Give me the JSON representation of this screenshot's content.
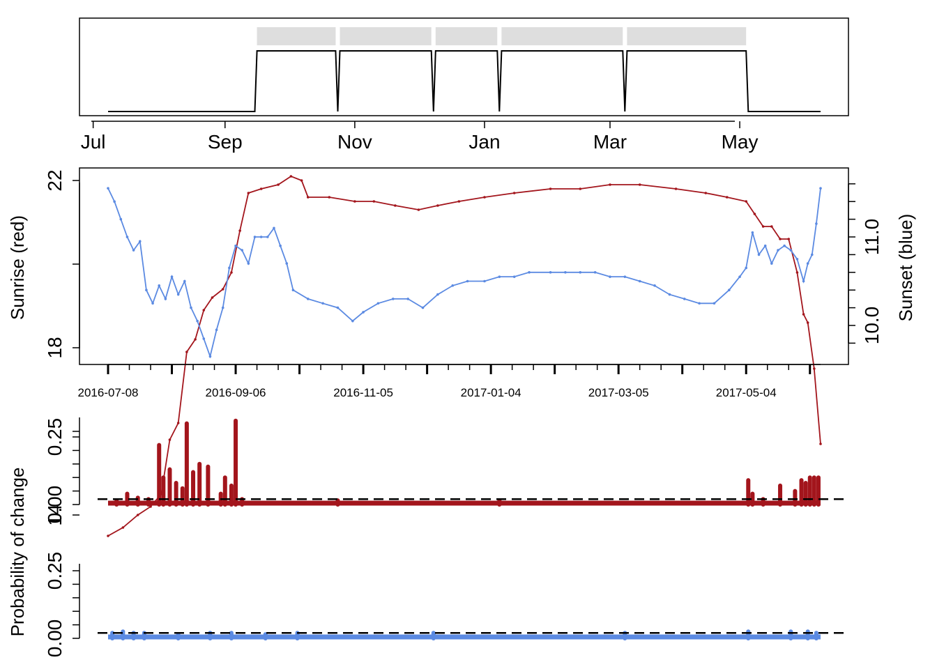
{
  "colors": {
    "red": "#a3151c",
    "blue": "#5b8ae2",
    "segment_bar": "#dedede",
    "axis": "#000000"
  },
  "chart_data": [
    {
      "type": "step",
      "panel": "segments",
      "x_tick_labels": [
        "Jul",
        "Sep",
        "Nov",
        "Jan",
        "Mar",
        "May"
      ],
      "x_tick_dates": [
        "2016-07-01",
        "2016-09-01",
        "2016-11-01",
        "2017-01-01",
        "2017-03-01",
        "2017-05-01"
      ],
      "state": [
        {
          "date": "2016-07-08",
          "value": 0
        },
        {
          "date": "2016-09-15",
          "value": 0
        },
        {
          "date": "2016-09-16",
          "value": 1
        },
        {
          "date": "2016-10-23",
          "value": 1
        },
        {
          "date": "2016-10-24",
          "value": 0
        },
        {
          "date": "2016-10-25",
          "value": 1
        },
        {
          "date": "2016-12-07",
          "value": 1
        },
        {
          "date": "2016-12-08",
          "value": 0
        },
        {
          "date": "2016-12-09",
          "value": 1
        },
        {
          "date": "2017-01-07",
          "value": 1
        },
        {
          "date": "2017-01-08",
          "value": 0
        },
        {
          "date": "2017-01-09",
          "value": 1
        },
        {
          "date": "2017-03-07",
          "value": 1
        },
        {
          "date": "2017-03-08",
          "value": 0
        },
        {
          "date": "2017-03-09",
          "value": 1
        },
        {
          "date": "2017-05-04",
          "value": 1
        },
        {
          "date": "2017-05-05",
          "value": 0
        },
        {
          "date": "2017-06-08",
          "value": 0
        }
      ],
      "segments": [
        {
          "start": "2016-09-16",
          "end": "2016-10-23"
        },
        {
          "start": "2016-10-25",
          "end": "2016-12-07"
        },
        {
          "start": "2016-12-09",
          "end": "2017-01-07"
        },
        {
          "start": "2017-01-09",
          "end": "2017-03-07"
        },
        {
          "start": "2017-03-09",
          "end": "2017-05-04"
        }
      ]
    },
    {
      "type": "line",
      "panel": "sunrise-sunset",
      "xlabel": "",
      "ylabel_left": "Sunrise (red)",
      "ylabel_right": "Sunset (blue)",
      "ylim_left": [
        13,
        22.4
      ],
      "ylim_right": [
        9.6,
        11.8
      ],
      "y_ticks_left": [
        14,
        18,
        22
      ],
      "y_ticks_right": [
        10.0,
        11.0
      ],
      "x_tick_labels": [
        "2016-07-08",
        "2016-09-06",
        "2016-11-05",
        "2017-01-04",
        "2017-03-05",
        "2017-05-04"
      ],
      "series": [
        {
          "name": "Sunrise (red)",
          "color": "#a3151c",
          "axis": "left",
          "points": [
            [
              "2016-07-08",
              13.5
            ],
            [
              "2016-07-15",
              13.7
            ],
            [
              "2016-07-22",
              14.0
            ],
            [
              "2016-07-28",
              14.2
            ],
            [
              "2016-08-02",
              14.5
            ],
            [
              "2016-08-06",
              15.8
            ],
            [
              "2016-08-10",
              16.2
            ],
            [
              "2016-08-14",
              17.9
            ],
            [
              "2016-08-18",
              18.2
            ],
            [
              "2016-08-22",
              18.9
            ],
            [
              "2016-08-26",
              19.2
            ],
            [
              "2016-08-31",
              19.4
            ],
            [
              "2016-09-04",
              19.8
            ],
            [
              "2016-09-08",
              20.8
            ],
            [
              "2016-09-12",
              21.7
            ],
            [
              "2016-09-18",
              21.8
            ],
            [
              "2016-09-26",
              21.9
            ],
            [
              "2016-10-02",
              22.1
            ],
            [
              "2016-10-07",
              22.0
            ],
            [
              "2016-10-10",
              21.6
            ],
            [
              "2016-10-20",
              21.6
            ],
            [
              "2016-11-01",
              21.5
            ],
            [
              "2016-11-10",
              21.5
            ],
            [
              "2016-11-20",
              21.4
            ],
            [
              "2016-12-01",
              21.3
            ],
            [
              "2016-12-10",
              21.4
            ],
            [
              "2016-12-20",
              21.5
            ],
            [
              "2017-01-01",
              21.6
            ],
            [
              "2017-01-15",
              21.7
            ],
            [
              "2017-02-01",
              21.8
            ],
            [
              "2017-02-15",
              21.8
            ],
            [
              "2017-03-01",
              21.9
            ],
            [
              "2017-03-15",
              21.9
            ],
            [
              "2017-04-01",
              21.8
            ],
            [
              "2017-04-15",
              21.7
            ],
            [
              "2017-04-25",
              21.6
            ],
            [
              "2017-05-04",
              21.5
            ],
            [
              "2017-05-08",
              21.2
            ],
            [
              "2017-05-12",
              20.9
            ],
            [
              "2017-05-16",
              20.9
            ],
            [
              "2017-05-20",
              20.6
            ],
            [
              "2017-05-24",
              20.6
            ],
            [
              "2017-05-28",
              19.8
            ],
            [
              "2017-05-31",
              18.8
            ],
            [
              "2017-06-02",
              18.6
            ],
            [
              "2017-06-05",
              17.5
            ],
            [
              "2017-06-08",
              15.7
            ]
          ]
        },
        {
          "name": "Sunset (blue)",
          "color": "#5b8ae2",
          "axis": "right",
          "points": [
            [
              "2016-07-08",
              11.55
            ],
            [
              "2016-07-11",
              11.4
            ],
            [
              "2016-07-14",
              11.2
            ],
            [
              "2016-07-17",
              11.0
            ],
            [
              "2016-07-20",
              10.85
            ],
            [
              "2016-07-23",
              10.95
            ],
            [
              "2016-07-26",
              10.4
            ],
            [
              "2016-07-29",
              10.25
            ],
            [
              "2016-08-01",
              10.45
            ],
            [
              "2016-08-04",
              10.3
            ],
            [
              "2016-08-07",
              10.55
            ],
            [
              "2016-08-10",
              10.35
            ],
            [
              "2016-08-13",
              10.5
            ],
            [
              "2016-08-16",
              10.2
            ],
            [
              "2016-08-19",
              10.05
            ],
            [
              "2016-08-22",
              9.85
            ],
            [
              "2016-08-25",
              9.65
            ],
            [
              "2016-08-28",
              9.95
            ],
            [
              "2016-08-31",
              10.2
            ],
            [
              "2016-09-03",
              10.65
            ],
            [
              "2016-09-06",
              10.9
            ],
            [
              "2016-09-09",
              10.85
            ],
            [
              "2016-09-12",
              10.7
            ],
            [
              "2016-09-15",
              11.0
            ],
            [
              "2016-09-18",
              11.0
            ],
            [
              "2016-09-21",
              11.0
            ],
            [
              "2016-09-24",
              11.1
            ],
            [
              "2016-09-27",
              10.9
            ],
            [
              "2016-09-30",
              10.7
            ],
            [
              "2016-10-03",
              10.4
            ],
            [
              "2016-10-10",
              10.3
            ],
            [
              "2016-10-17",
              10.25
            ],
            [
              "2016-10-24",
              10.2
            ],
            [
              "2016-10-31",
              10.05
            ],
            [
              "2016-11-05",
              10.15
            ],
            [
              "2016-11-12",
              10.25
            ],
            [
              "2016-11-19",
              10.3
            ],
            [
              "2016-11-26",
              10.3
            ],
            [
              "2016-12-03",
              10.2
            ],
            [
              "2016-12-10",
              10.35
            ],
            [
              "2016-12-17",
              10.45
            ],
            [
              "2016-12-24",
              10.5
            ],
            [
              "2017-01-01",
              10.5
            ],
            [
              "2017-01-08",
              10.55
            ],
            [
              "2017-01-15",
              10.55
            ],
            [
              "2017-01-22",
              10.6
            ],
            [
              "2017-02-01",
              10.6
            ],
            [
              "2017-02-08",
              10.6
            ],
            [
              "2017-02-15",
              10.6
            ],
            [
              "2017-02-22",
              10.6
            ],
            [
              "2017-03-01",
              10.55
            ],
            [
              "2017-03-08",
              10.55
            ],
            [
              "2017-03-15",
              10.5
            ],
            [
              "2017-03-22",
              10.45
            ],
            [
              "2017-03-29",
              10.35
            ],
            [
              "2017-04-05",
              10.3
            ],
            [
              "2017-04-12",
              10.25
            ],
            [
              "2017-04-19",
              10.25
            ],
            [
              "2017-04-26",
              10.4
            ],
            [
              "2017-05-01",
              10.55
            ],
            [
              "2017-05-04",
              10.65
            ],
            [
              "2017-05-07",
              11.05
            ],
            [
              "2017-05-10",
              10.8
            ],
            [
              "2017-05-13",
              10.9
            ],
            [
              "2017-05-16",
              10.7
            ],
            [
              "2017-05-19",
              10.85
            ],
            [
              "2017-05-22",
              10.9
            ],
            [
              "2017-05-25",
              10.85
            ],
            [
              "2017-05-28",
              10.75
            ],
            [
              "2017-05-31",
              10.5
            ],
            [
              "2017-06-02",
              10.7
            ],
            [
              "2017-06-04",
              10.8
            ],
            [
              "2017-06-06",
              11.15
            ],
            [
              "2017-06-08",
              11.55
            ]
          ]
        }
      ]
    },
    {
      "type": "bar",
      "panel": "change-probability-sunrise",
      "ylabel": "Probability of change",
      "color": "#a3151c",
      "ylim": [
        0,
        0.32
      ],
      "y_ticks": [
        0.0,
        0.25
      ],
      "threshold": 0.02,
      "baseline": 0.005,
      "spikes": [
        [
          "2016-07-12",
          0.015
        ],
        [
          "2016-07-17",
          0.04
        ],
        [
          "2016-07-22",
          0.025
        ],
        [
          "2016-07-27",
          0.02
        ],
        [
          "2016-08-01",
          0.22
        ],
        [
          "2016-08-03",
          0.1
        ],
        [
          "2016-08-06",
          0.13
        ],
        [
          "2016-08-09",
          0.08
        ],
        [
          "2016-08-12",
          0.06
        ],
        [
          "2016-08-14",
          0.3
        ],
        [
          "2016-08-17",
          0.12
        ],
        [
          "2016-08-20",
          0.15
        ],
        [
          "2016-08-24",
          0.14
        ],
        [
          "2016-08-30",
          0.04
        ],
        [
          "2016-09-01",
          0.1
        ],
        [
          "2016-09-04",
          0.07
        ],
        [
          "2016-09-06",
          0.31
        ],
        [
          "2016-09-09",
          0.02
        ],
        [
          "2016-10-24",
          0.015
        ],
        [
          "2017-01-08",
          0.015
        ],
        [
          "2017-05-05",
          0.09
        ],
        [
          "2017-05-07",
          0.04
        ],
        [
          "2017-05-12",
          0.02
        ],
        [
          "2017-05-20",
          0.07
        ],
        [
          "2017-05-27",
          0.05
        ],
        [
          "2017-05-30",
          0.09
        ],
        [
          "2017-06-01",
          0.08
        ],
        [
          "2017-06-03",
          0.1
        ],
        [
          "2017-06-05",
          0.1
        ],
        [
          "2017-06-07",
          0.1
        ]
      ]
    },
    {
      "type": "bar",
      "panel": "change-probability-sunset",
      "ylabel": "Probability of change",
      "color": "#5b8ae2",
      "ylim": [
        0,
        0.32
      ],
      "y_ticks": [
        0.0,
        0.25
      ],
      "threshold": 0.02,
      "baseline": 0.005,
      "spikes": [
        [
          "2016-07-10",
          0.02
        ],
        [
          "2016-07-15",
          0.025
        ],
        [
          "2016-07-20",
          0.02
        ],
        [
          "2016-07-25",
          0.02
        ],
        [
          "2016-08-10",
          0.015
        ],
        [
          "2016-08-25",
          0.02
        ],
        [
          "2016-09-04",
          0.02
        ],
        [
          "2016-09-20",
          0.015
        ],
        [
          "2016-10-05",
          0.02
        ],
        [
          "2016-12-08",
          0.02
        ],
        [
          "2017-03-08",
          0.02
        ],
        [
          "2017-05-05",
          0.025
        ],
        [
          "2017-05-25",
          0.025
        ],
        [
          "2017-06-02",
          0.025
        ],
        [
          "2017-06-06",
          0.02
        ]
      ]
    }
  ]
}
